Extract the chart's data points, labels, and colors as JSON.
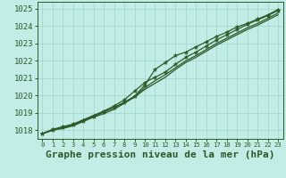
{
  "bg_color": "#c2ece6",
  "grid_color": "#9ed4cc",
  "line_color": "#2d5a27",
  "title": "Graphe pression niveau de la mer (hPa)",
  "xlim": [
    -0.5,
    23.5
  ],
  "ylim": [
    1017.5,
    1025.4
  ],
  "yticks": [
    1018,
    1019,
    1020,
    1021,
    1022,
    1023,
    1024,
    1025
  ],
  "xticks": [
    0,
    1,
    2,
    3,
    4,
    5,
    6,
    7,
    8,
    9,
    10,
    11,
    12,
    13,
    14,
    15,
    16,
    17,
    18,
    19,
    20,
    21,
    22,
    23
  ],
  "series": [
    [
      1017.8,
      1018.0,
      1018.15,
      1018.3,
      1018.55,
      1018.8,
      1019.05,
      1019.3,
      1019.6,
      1019.95,
      1020.45,
      1020.85,
      1021.2,
      1021.6,
      1022.0,
      1022.3,
      1022.65,
      1023.0,
      1023.3,
      1023.6,
      1023.9,
      1024.15,
      1024.45,
      1024.75
    ],
    [
      1017.8,
      1018.0,
      1018.15,
      1018.3,
      1018.55,
      1018.8,
      1019.05,
      1019.3,
      1019.6,
      1019.95,
      1020.6,
      1021.5,
      1021.9,
      1022.3,
      1022.5,
      1022.8,
      1023.1,
      1023.4,
      1023.65,
      1023.95,
      1024.15,
      1024.4,
      1024.65,
      1024.95
    ],
    [
      1017.8,
      1018.05,
      1018.2,
      1018.35,
      1018.6,
      1018.85,
      1019.1,
      1019.4,
      1019.75,
      1020.25,
      1020.75,
      1021.05,
      1021.35,
      1021.8,
      1022.2,
      1022.5,
      1022.85,
      1023.2,
      1023.5,
      1023.8,
      1024.1,
      1024.35,
      1024.6,
      1024.9
    ],
    [
      1017.8,
      1018.0,
      1018.1,
      1018.25,
      1018.5,
      1018.75,
      1018.95,
      1019.2,
      1019.55,
      1019.9,
      1020.35,
      1020.7,
      1021.05,
      1021.5,
      1021.9,
      1022.2,
      1022.55,
      1022.9,
      1023.2,
      1023.5,
      1023.8,
      1024.05,
      1024.35,
      1024.65
    ]
  ],
  "marker_series": [
    1,
    2
  ],
  "title_fontsize": 8,
  "tick_fontsize": 6.5
}
